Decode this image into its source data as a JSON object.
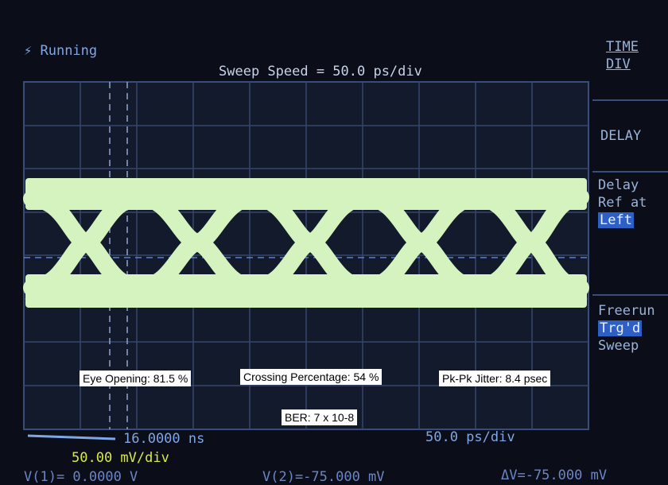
{
  "status": "Running",
  "sweep_speed": "Sweep Speed = 50.0 ps/div",
  "softkeys": [
    {
      "lines": [
        "TIME",
        "DIV"
      ]
    },
    {
      "lines": [
        "DELAY"
      ]
    },
    {
      "lines": [
        "Delay",
        "Ref at",
        "Left"
      ]
    },
    {
      "lines": [
        "Freerun",
        "Trg'd",
        "Sweep"
      ]
    }
  ],
  "measurements": [
    "Eye Opening: 81.5 %",
    "Crossing Percentage: 54 %",
    "Pk-Pk Jitter: 8.4 psec",
    "BER: 7 x 10-8"
  ],
  "footer": {
    "delay": "16.0000 ns",
    "timebase": "50.0 ps/div",
    "vertical": "50.00 mV/div",
    "v1": "V(1)= 0.0000 V",
    "v2": "V(2)=-75.000 mV",
    "dv": "ΔV=-75.000 mV"
  }
}
